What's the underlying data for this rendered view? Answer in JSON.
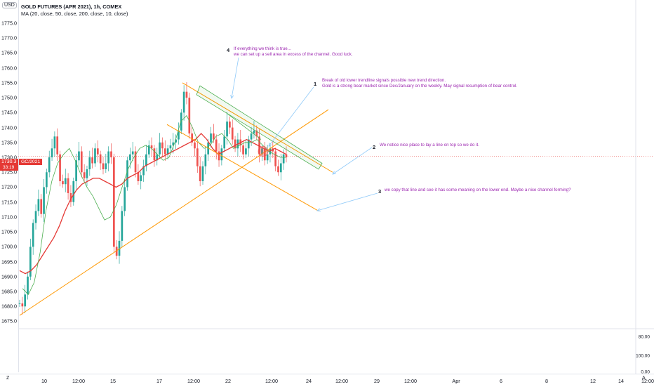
{
  "currency_badge": "USD",
  "legend": {
    "title": "GOLD FUTURES (APR 2021), 1h, COMEX",
    "ma": "MA (20, close, 50, close, 200, close, 10, close)"
  },
  "price_label": {
    "value": "1730.3",
    "countdown": "33:19",
    "ticker": "GC/2021"
  },
  "y_axis_ticks": [
    "1775.0",
    "1770.0",
    "1765.0",
    "1760.0",
    "1755.0",
    "1750.0",
    "1745.0",
    "1740.0",
    "1735.0",
    "1730.0",
    "1725.0",
    "1720.0",
    "1715.0",
    "1710.0",
    "1705.0",
    "1700.0",
    "1695.0",
    "1690.0",
    "1685.0",
    "1680.0",
    "1675.0"
  ],
  "volume_axis_ticks": [
    "80.00",
    "100.00",
    "0.00"
  ],
  "time_axis_ticks": [
    "10",
    "12:00",
    "15",
    "17",
    "12:00",
    "22",
    "12:00",
    "24",
    "12:00",
    "29",
    "12:00",
    "Apr",
    "6",
    "8",
    "12",
    "14",
    "12:00"
  ],
  "corner_buttons": {
    "left": "Z",
    "right": "A"
  },
  "annotations": [
    {
      "num": "4",
      "text1": "If everything we think is true...",
      "text2": "we can set up a sell area in excess of the channel. Good luck."
    },
    {
      "num": "1",
      "text1": "Break of old lower trendline signals possible new trend direction.",
      "text2": "Gold is a strong bear market since Dec/January on the weekly. May signal resumption of bear control."
    },
    {
      "num": "2",
      "text1": "We notice nice place to lay a line on top so we do it.",
      "text2": ""
    },
    {
      "num": "3",
      "text1": "we copy that line and see it has some meaning on the lower end. Maybe a nice channel forming?",
      "text2": ""
    }
  ],
  "colors": {
    "up": "#26a69a",
    "down": "#ef5350",
    "ma_fast": "#4caf50",
    "ma_slow": "#e53935",
    "trend": "#ff9800",
    "channel": "#4caf50",
    "note": "#9c27b0"
  },
  "chart_data": {
    "type": "candlestick",
    "ylim": [
      1675,
      1777
    ],
    "close_path": [
      1681,
      1680,
      1684,
      1690,
      1700,
      1708,
      1712,
      1716,
      1711,
      1720,
      1725,
      1730,
      1733,
      1737,
      1731,
      1722,
      1721,
      1723,
      1718,
      1715,
      1722,
      1729,
      1732,
      1725,
      1723,
      1726,
      1730,
      1728,
      1733,
      1731,
      1728,
      1726,
      1728,
      1732,
      1730,
      1700,
      1697,
      1702,
      1712,
      1720,
      1729,
      1731,
      1732,
      1725,
      1722,
      1724,
      1727,
      1731,
      1734,
      1733,
      1729,
      1731,
      1735,
      1733,
      1731,
      1733,
      1734,
      1735,
      1736,
      1739,
      1745,
      1752,
      1750,
      1738,
      1735,
      1733,
      1727,
      1722,
      1727,
      1731,
      1735,
      1738,
      1736,
      1732,
      1729,
      1733,
      1737,
      1742,
      1740,
      1736,
      1733,
      1736,
      1734,
      1731,
      1733,
      1736,
      1738,
      1739,
      1737,
      1731,
      1733,
      1729,
      1731,
      1733,
      1732,
      1727,
      1725,
      1728,
      1731,
      1730
    ],
    "ma_slow_path": [
      1692,
      1691,
      1692,
      1694,
      1697,
      1700,
      1703,
      1707,
      1712,
      1716,
      1719,
      1721,
      1722,
      1723,
      1723,
      1722,
      1721,
      1720,
      1721,
      1723,
      1724,
      1725,
      1727,
      1728,
      1729,
      1730,
      1731,
      1732,
      1733,
      1734,
      1735,
      1736,
      1738,
      1736,
      1733,
      1731,
      1732,
      1733,
      1734,
      1735,
      1736,
      1735,
      1734,
      1733,
      1732,
      1733,
      1732,
      1731
    ],
    "ma_fast_path": [
      1686,
      1684,
      1688,
      1698,
      1712,
      1722,
      1728,
      1731,
      1733,
      1729,
      1724,
      1720,
      1717,
      1713,
      1709,
      1710,
      1714,
      1720,
      1726,
      1730,
      1733,
      1734,
      1733,
      1731,
      1729,
      1730,
      1735,
      1742,
      1744,
      1740,
      1735,
      1733,
      1734,
      1737,
      1738,
      1736,
      1733,
      1734,
      1735,
      1735,
      1736,
      1734,
      1732,
      1731,
      1730,
      1730
    ],
    "trendline_lower": {
      "x": [
        "start",
        "24 12:00"
      ],
      "y": [
        1675,
        1746
      ]
    },
    "channel_top": {
      "y": [
        1755,
        1727
      ]
    },
    "channel_bottom": {
      "y": [
        1742,
        1712
      ]
    },
    "last_price": 1730.3
  }
}
